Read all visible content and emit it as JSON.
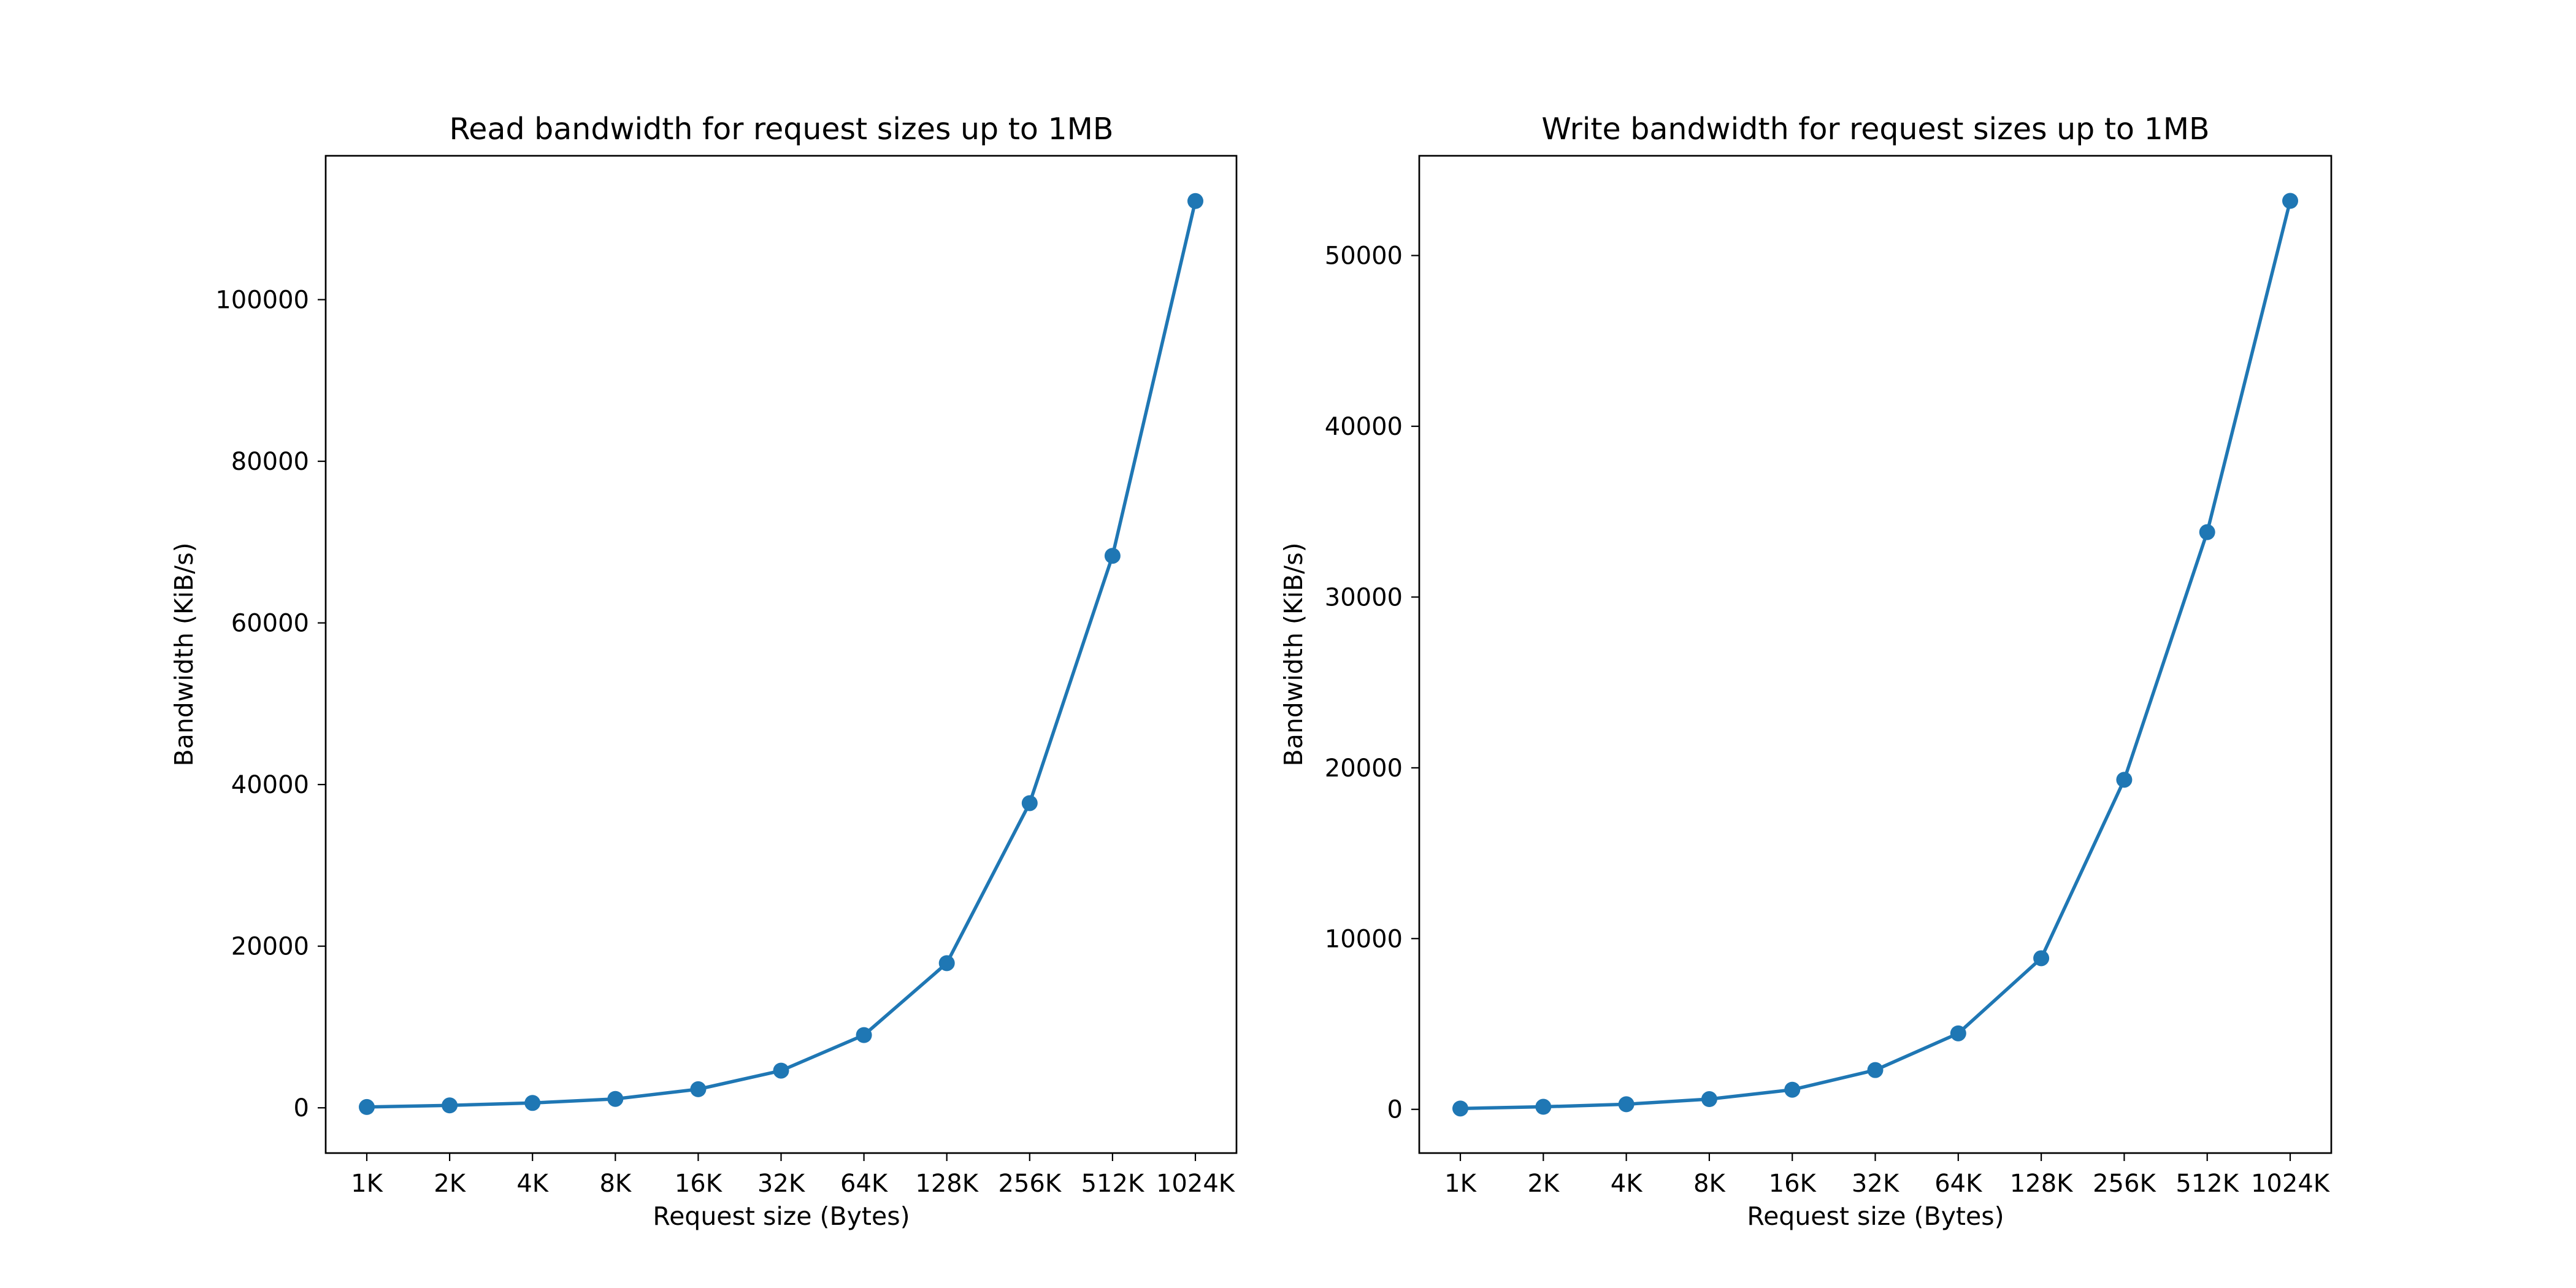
{
  "chart_data": [
    {
      "type": "line",
      "title": "Read bandwidth for request sizes up to 1MB",
      "xlabel": "Request size (Bytes)",
      "ylabel": "Bandwidth (KiB/s)",
      "categories": [
        "1K",
        "2K",
        "4K",
        "8K",
        "16K",
        "32K",
        "64K",
        "128K",
        "256K",
        "512K",
        "1024K"
      ],
      "yticks": [
        0,
        20000,
        40000,
        60000,
        80000,
        100000
      ],
      "ylim": [
        -5600,
        117800
      ],
      "grid": false,
      "marker": "circle",
      "color": "#1f77b4",
      "series": [
        {
          "values": [
            100,
            300,
            600,
            1100,
            2300,
            4600,
            9000,
            17900,
            37700,
            68300,
            112200
          ]
        }
      ]
    },
    {
      "type": "line",
      "title": "Write bandwidth for request sizes up to 1MB",
      "xlabel": "Request size (Bytes)",
      "ylabel": "Bandwidth (KiB/s)",
      "categories": [
        "1K",
        "2K",
        "4K",
        "8K",
        "16K",
        "32K",
        "64K",
        "128K",
        "256K",
        "512K",
        "1024K"
      ],
      "yticks": [
        0,
        10000,
        20000,
        30000,
        40000,
        50000
      ],
      "ylim": [
        -2560,
        55840
      ],
      "grid": false,
      "marker": "circle",
      "color": "#1f77b4",
      "series": [
        {
          "values": [
            50,
            150,
            300,
            600,
            1150,
            2300,
            4450,
            8850,
            19300,
            33800,
            53200
          ]
        }
      ]
    }
  ]
}
